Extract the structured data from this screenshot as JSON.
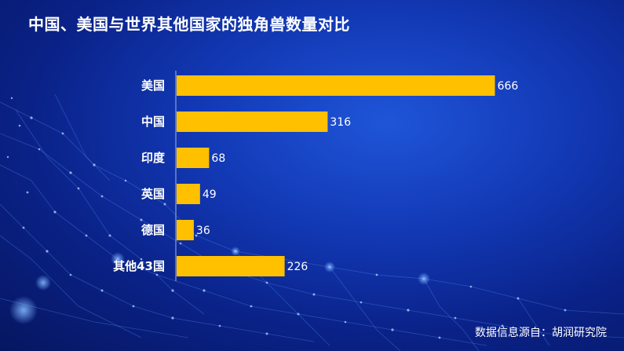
{
  "title": "中国、美国与世界其他国家的独角兽数量对比",
  "source": "数据信息源自：胡润研究院",
  "colors": {
    "bar": "#FFC000",
    "text": "#FFFFFF",
    "axis": "#9FB4E6"
  },
  "chart_data": {
    "type": "bar",
    "orientation": "horizontal",
    "categories": [
      "美国",
      "中国",
      "印度",
      "英国",
      "德国",
      "其他43国"
    ],
    "values": [
      666,
      316,
      68,
      49,
      36,
      226
    ],
    "data_labels": true,
    "xlim": [
      0,
      670
    ],
    "grid": false,
    "legend": "none"
  }
}
